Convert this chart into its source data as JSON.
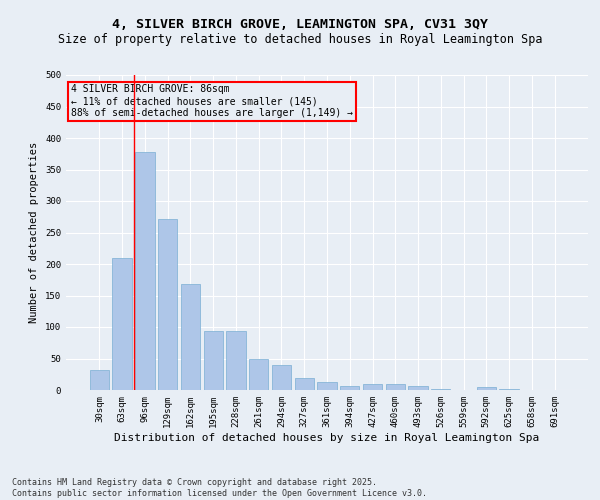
{
  "title1": "4, SILVER BIRCH GROVE, LEAMINGTON SPA, CV31 3QY",
  "title2": "Size of property relative to detached houses in Royal Leamington Spa",
  "xlabel": "Distribution of detached houses by size in Royal Leamington Spa",
  "ylabel": "Number of detached properties",
  "footnote": "Contains HM Land Registry data © Crown copyright and database right 2025.\nContains public sector information licensed under the Open Government Licence v3.0.",
  "bar_labels": [
    "30sqm",
    "63sqm",
    "96sqm",
    "129sqm",
    "162sqm",
    "195sqm",
    "228sqm",
    "261sqm",
    "294sqm",
    "327sqm",
    "361sqm",
    "394sqm",
    "427sqm",
    "460sqm",
    "493sqm",
    "526sqm",
    "559sqm",
    "592sqm",
    "625sqm",
    "658sqm",
    "691sqm"
  ],
  "bar_values": [
    32,
    210,
    378,
    272,
    168,
    93,
    93,
    50,
    39,
    19,
    12,
    6,
    10,
    10,
    6,
    1,
    0,
    4,
    1,
    0,
    0
  ],
  "bar_color": "#aec6e8",
  "bar_edge_color": "#7aafd4",
  "vline_x": 1.5,
  "vline_color": "red",
  "annotation_text": "4 SILVER BIRCH GROVE: 86sqm\n← 11% of detached houses are smaller (145)\n88% of semi-detached houses are larger (1,149) →",
  "annotation_box_color": "red",
  "ylim": [
    0,
    500
  ],
  "yticks": [
    0,
    50,
    100,
    150,
    200,
    250,
    300,
    350,
    400,
    450,
    500
  ],
  "bg_color": "#e8eef5",
  "grid_color": "white",
  "title1_fontsize": 9.5,
  "title2_fontsize": 8.5,
  "xlabel_fontsize": 8,
  "ylabel_fontsize": 7.5,
  "tick_fontsize": 6.5,
  "annot_fontsize": 7,
  "footnote_fontsize": 6
}
